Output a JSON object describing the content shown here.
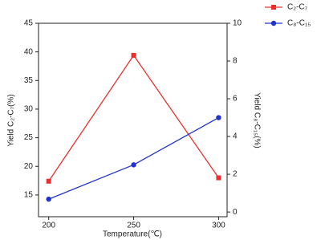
{
  "chart_data": {
    "type": "line",
    "x_label": "Temperature(℃)",
    "y_label": "Yield C₂-C₇(%)",
    "y2_label": "Yield C₈-C₁₅(%)",
    "x": [
      200,
      250,
      300
    ],
    "xlim": [
      194,
      305
    ],
    "xticks": [
      200,
      250,
      300
    ],
    "ylim": [
      11.2,
      45
    ],
    "yticks": [
      15,
      20,
      25,
      30,
      35,
      40,
      45
    ],
    "y2lim": [
      -0.25,
      10
    ],
    "y2ticks": [
      0,
      2,
      4,
      6,
      8,
      10
    ],
    "series": [
      {
        "name": "C₂-C₇",
        "color": "#e8312c",
        "marker": "square",
        "values": [
          17.4,
          39.4,
          18.0
        ]
      },
      {
        "name": "C₈-C₁₅",
        "color": "#2233cc",
        "marker": "circle",
        "axis": "y2",
        "values": [
          0.68,
          2.5,
          5.0
        ]
      }
    ]
  }
}
